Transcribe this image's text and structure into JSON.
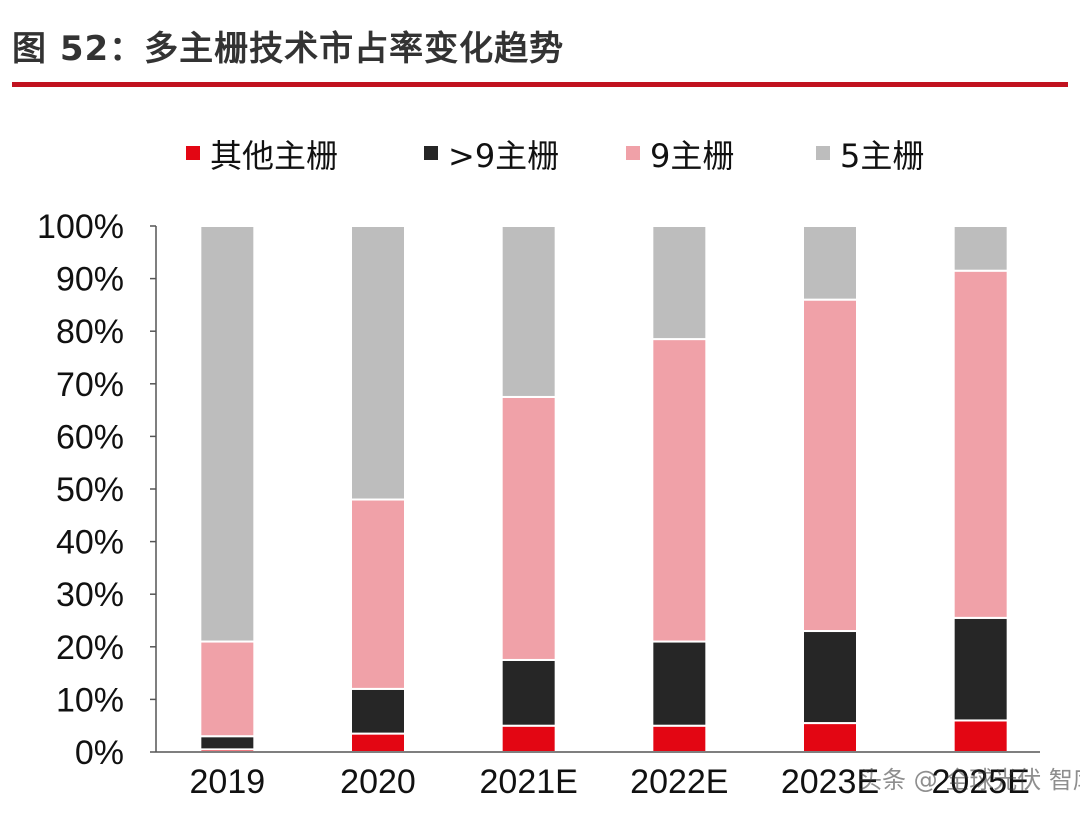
{
  "header": {
    "title": "图 52：多主栅技术市占率变化趋势"
  },
  "watermark": {
    "text": "头条 @ 全球光伏 智库"
  },
  "chart_data": {
    "type": "bar",
    "stacked": true,
    "title": "图 52：多主栅技术市占率变化趋势",
    "categories": [
      "2019",
      "2020",
      "2021E",
      "2022E",
      "2023E",
      "2025E"
    ],
    "series": [
      {
        "name": "其他主栅",
        "color": "#e30613",
        "values": [
          0.5,
          3.5,
          5,
          5,
          5.5,
          6
        ]
      },
      {
        "name": ">9主栅",
        "color": "#262626",
        "values": [
          2.5,
          8.5,
          12.5,
          16,
          17.5,
          19.5
        ]
      },
      {
        "name": "9主栅",
        "color": "#f0a1a8",
        "values": [
          18,
          36,
          50,
          57.5,
          63,
          66
        ]
      },
      {
        "name": "5主栅",
        "color": "#bdbdbd",
        "values": [
          79,
          52,
          32.5,
          21.5,
          14,
          8.5
        ]
      }
    ],
    "ylim": [
      0,
      100
    ],
    "yticks": [
      "0%",
      "10%",
      "20%",
      "30%",
      "40%",
      "50%",
      "60%",
      "70%",
      "80%",
      "90%",
      "100%"
    ],
    "xlabel": "",
    "ylabel": "",
    "legend_position": "top"
  }
}
